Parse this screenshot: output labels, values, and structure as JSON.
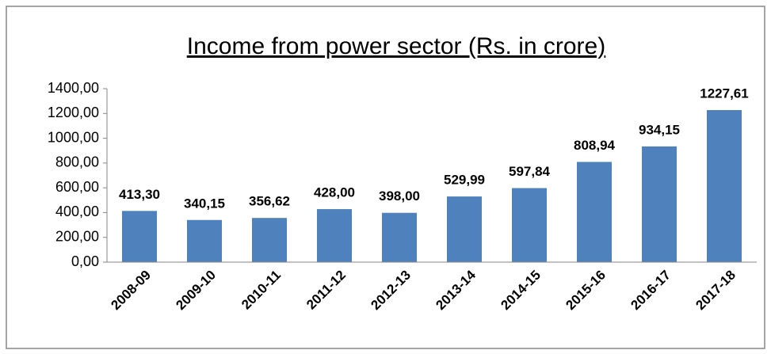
{
  "chart_data": {
    "type": "bar",
    "title": "Income from power sector (Rs. in crore)",
    "categories": [
      "2008-09",
      "2009-10",
      "2010-11",
      "2011-12",
      "2012-13",
      "2013-14",
      "2014-15",
      "2015-16",
      "2016-17",
      "2017-18"
    ],
    "values": [
      413.3,
      340.15,
      356.62,
      428.0,
      398.0,
      529.99,
      597.84,
      808.94,
      934.15,
      1227.61
    ],
    "value_labels": [
      "413,30",
      "340,15",
      "356,62",
      "428,00",
      "398,00",
      "529,99",
      "597,84",
      "808,94",
      "934,15",
      "1227,61"
    ],
    "color": "#4f81bd",
    "ylim": [
      0,
      1400
    ],
    "yticks": [
      {
        "value": 0,
        "label": "0,00"
      },
      {
        "value": 200,
        "label": "200,00"
      },
      {
        "value": 400,
        "label": "400,00"
      },
      {
        "value": 600,
        "label": "600,00"
      },
      {
        "value": 800,
        "label": "800,00"
      },
      {
        "value": 1000,
        "label": "1000,00"
      },
      {
        "value": 1200,
        "label": "1200,00"
      },
      {
        "value": 1400,
        "label": "1400,00"
      }
    ],
    "grid": false
  }
}
